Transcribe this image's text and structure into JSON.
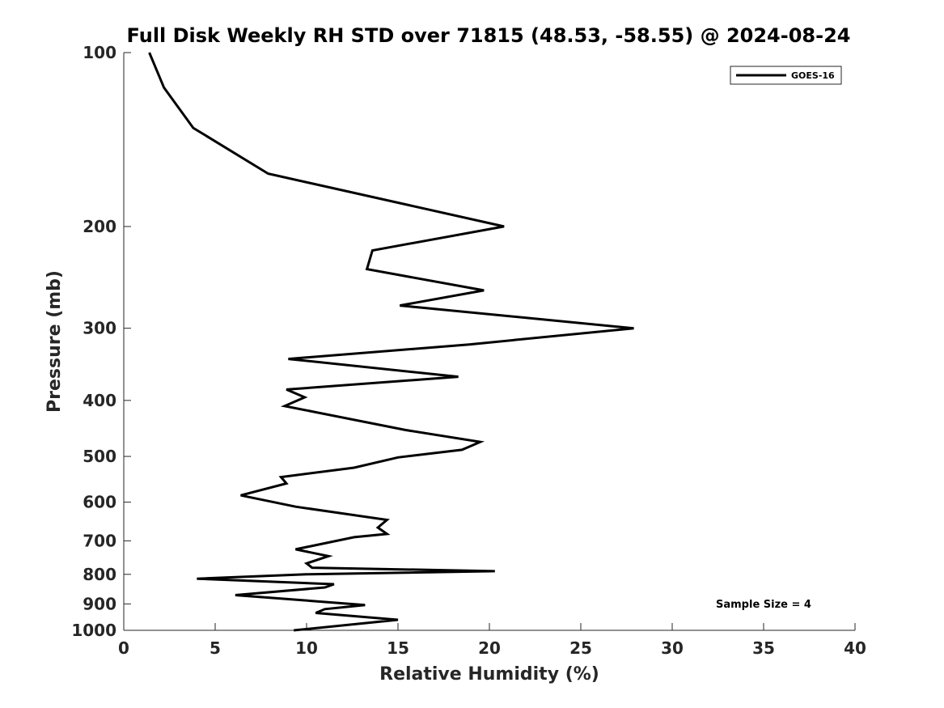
{
  "chart_data": {
    "type": "line",
    "title": "Full Disk Weekly RH STD over 71815 (48.53, -58.55) @ 2024-08-24",
    "xlabel": "Relative Humidity (%)",
    "ylabel": "Pressure (mb)",
    "xlim": [
      0,
      40
    ],
    "ylim": [
      100,
      1000
    ],
    "y_scale": "log",
    "y_reversed": true,
    "x_ticks": [
      0,
      5,
      10,
      15,
      20,
      25,
      30,
      35,
      40
    ],
    "x_tick_labels": [
      "0",
      "5",
      "10",
      "15",
      "20",
      "25",
      "30",
      "35",
      "40"
    ],
    "y_ticks": [
      100,
      200,
      300,
      400,
      500,
      600,
      700,
      800,
      900,
      1000
    ],
    "y_tick_labels": [
      "100",
      "200",
      "300",
      "400",
      "500",
      "600",
      "700",
      "800",
      "900",
      "1000"
    ],
    "grid": false,
    "legend": {
      "position": "top-right",
      "entries": [
        "GOES-16"
      ]
    },
    "annotation": "Sample Size = 4",
    "series": [
      {
        "name": "GOES-16",
        "color": "#000000",
        "x": [
          1.4,
          2.2,
          3.8,
          7.9,
          20.8,
          13.6,
          13.3,
          19.7,
          15.1,
          27.9,
          18.9,
          9.0,
          18.3,
          8.9,
          9.9,
          8.8,
          15.4,
          19.5,
          18.5,
          15.0,
          12.6,
          8.6,
          8.9,
          6.4,
          9.4,
          14.4,
          13.9,
          14.4,
          12.6,
          9.4,
          11.2,
          10.0,
          10.3,
          20.3,
          10.0,
          4.0,
          11.5,
          11.0,
          6.1,
          13.2,
          11.0,
          10.5,
          15.0,
          9.3
        ],
        "y": [
          100,
          115,
          135,
          162,
          200,
          220,
          237,
          258,
          274,
          300,
          320,
          339,
          364,
          383,
          395,
          409,
          450,
          472,
          487,
          502,
          523,
          543,
          557,
          584,
          611,
          644,
          664,
          681,
          690,
          724,
          744,
          766,
          779,
          790,
          800,
          814,
          832,
          843,
          869,
          904,
          919,
          933,
          959,
          1000
        ]
      }
    ]
  }
}
